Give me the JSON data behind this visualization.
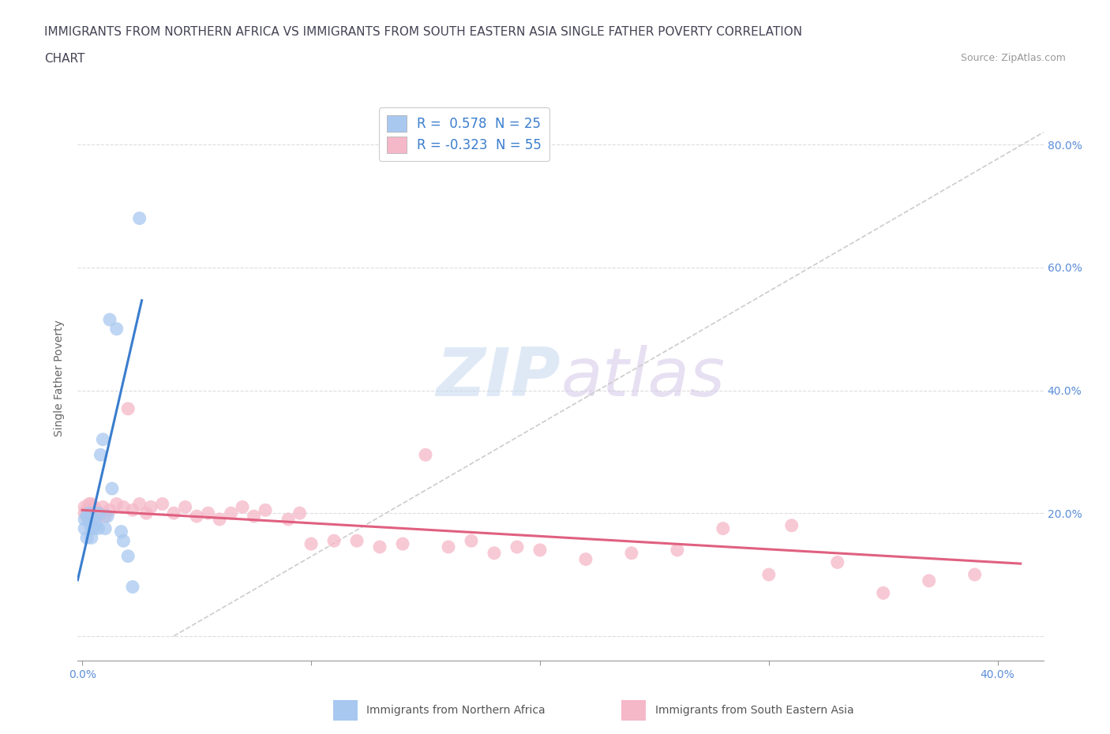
{
  "title_line1": "IMMIGRANTS FROM NORTHERN AFRICA VS IMMIGRANTS FROM SOUTH EASTERN ASIA SINGLE FATHER POVERTY CORRELATION",
  "title_line2": "CHART",
  "source": "Source: ZipAtlas.com",
  "ylabel": "Single Father Poverty",
  "xlim": [
    -0.002,
    0.42
  ],
  "ylim": [
    -0.04,
    0.88
  ],
  "legend_blue_r": "0.578",
  "legend_blue_n": "25",
  "legend_pink_r": "-0.323",
  "legend_pink_n": "55",
  "color_blue": "#a8c8f0",
  "color_pink": "#f5b8c8",
  "line_blue": "#3a7dce",
  "line_pink": "#e06080",
  "line_diagonal_color": "#cccccc",
  "watermark_zip": "ZIP",
  "watermark_atlas": "atlas",
  "blue_scatter_x": [
    0.001,
    0.001,
    0.002,
    0.002,
    0.003,
    0.003,
    0.004,
    0.004,
    0.005,
    0.005,
    0.006,
    0.007,
    0.007,
    0.008,
    0.009,
    0.01,
    0.011,
    0.012,
    0.013,
    0.015,
    0.017,
    0.018,
    0.02,
    0.022,
    0.025
  ],
  "blue_scatter_y": [
    0.19,
    0.175,
    0.195,
    0.16,
    0.185,
    0.2,
    0.175,
    0.16,
    0.19,
    0.175,
    0.185,
    0.2,
    0.175,
    0.295,
    0.32,
    0.175,
    0.195,
    0.515,
    0.24,
    0.5,
    0.17,
    0.155,
    0.13,
    0.08,
    0.68
  ],
  "pink_scatter_x": [
    0.001,
    0.001,
    0.002,
    0.002,
    0.003,
    0.003,
    0.004,
    0.004,
    0.005,
    0.006,
    0.007,
    0.008,
    0.009,
    0.01,
    0.012,
    0.015,
    0.018,
    0.02,
    0.022,
    0.025,
    0.028,
    0.03,
    0.035,
    0.04,
    0.045,
    0.05,
    0.055,
    0.06,
    0.065,
    0.07,
    0.075,
    0.08,
    0.09,
    0.095,
    0.1,
    0.11,
    0.12,
    0.13,
    0.14,
    0.15,
    0.16,
    0.17,
    0.18,
    0.19,
    0.2,
    0.22,
    0.24,
    0.26,
    0.28,
    0.3,
    0.31,
    0.33,
    0.35,
    0.37,
    0.39
  ],
  "pink_scatter_y": [
    0.2,
    0.21,
    0.195,
    0.205,
    0.215,
    0.2,
    0.195,
    0.215,
    0.21,
    0.205,
    0.195,
    0.2,
    0.21,
    0.195,
    0.205,
    0.215,
    0.21,
    0.37,
    0.205,
    0.215,
    0.2,
    0.21,
    0.215,
    0.2,
    0.21,
    0.195,
    0.2,
    0.19,
    0.2,
    0.21,
    0.195,
    0.205,
    0.19,
    0.2,
    0.15,
    0.155,
    0.155,
    0.145,
    0.15,
    0.295,
    0.145,
    0.155,
    0.135,
    0.145,
    0.14,
    0.125,
    0.135,
    0.14,
    0.175,
    0.1,
    0.18,
    0.12,
    0.07,
    0.09,
    0.1
  ],
  "title_fontsize": 11,
  "axis_label_fontsize": 10,
  "tick_fontsize": 10,
  "bottom_label_blue": "Immigrants from Northern Africa",
  "bottom_label_pink": "Immigrants from South Eastern Asia"
}
